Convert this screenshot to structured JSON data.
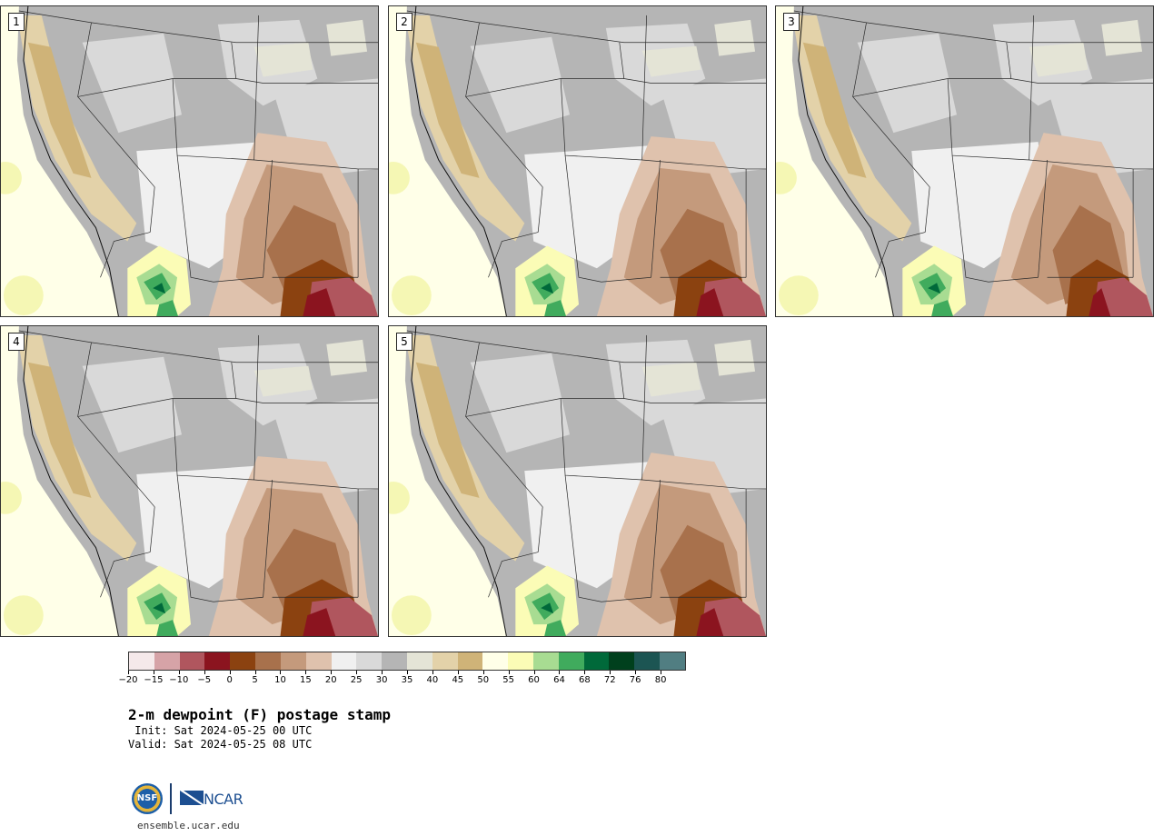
{
  "panels": [
    {
      "label": "1",
      "variant": 0
    },
    {
      "label": "2",
      "variant": 1
    },
    {
      "label": "3",
      "variant": 2
    },
    {
      "label": "4",
      "variant": 3
    },
    {
      "label": "5",
      "variant": 4
    }
  ],
  "colorbar": {
    "colors": [
      "#f5e9ea",
      "#d6a3a7",
      "#b0565e",
      "#8b141f",
      "#8b4210",
      "#a8714c",
      "#c49a7c",
      "#dfc2ad",
      "#f0f0f0",
      "#d9d9d9",
      "#b5b5b5",
      "#e4e4d6",
      "#e3d2a9",
      "#cfb378",
      "#ffffe8",
      "#fbfcb6",
      "#a8dc92",
      "#40ab5d",
      "#00693a",
      "#00401d",
      "#1c5553",
      "#517e82"
    ],
    "ticks": [
      "−20",
      "−15",
      "−10",
      "−5",
      "0",
      "5",
      "10",
      "15",
      "20",
      "25",
      "30",
      "35",
      "40",
      "45",
      "50",
      "55",
      "60",
      "64",
      "68",
      "72",
      "76",
      "80"
    ]
  },
  "title": "2-m dewpoint (F) postage stamp",
  "init_text": " Init: Sat 2024-05-25 00 UTC",
  "valid_text": "Valid: Sat 2024-05-25 08 UTC",
  "logos": {
    "nsf": "NSF",
    "ncar": "NCAR"
  },
  "site": "ensemble.ucar.edu"
}
